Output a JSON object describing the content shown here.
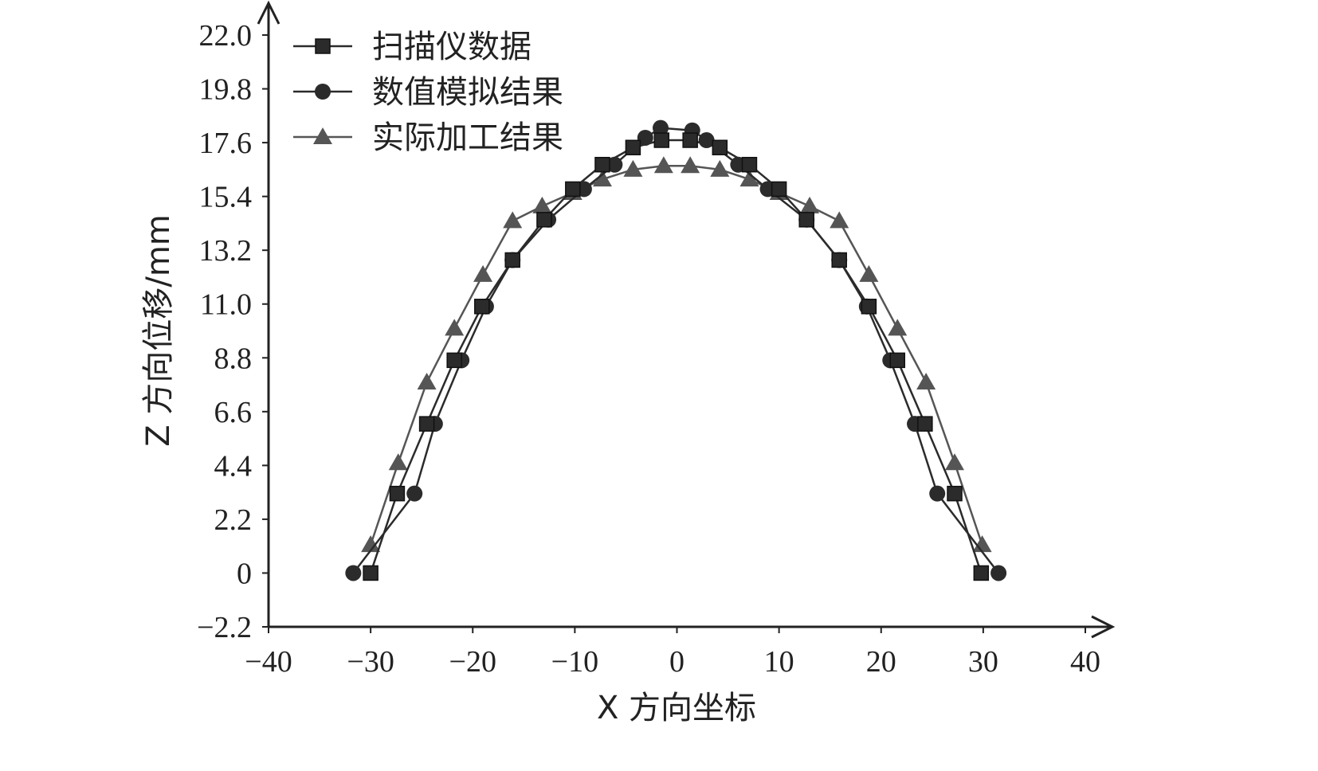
{
  "chart_data": {
    "type": "line",
    "title": "",
    "xlabel": "X 方向坐标",
    "ylabel": "Z 方向位移/mm",
    "xlim": [
      -40,
      40
    ],
    "ylim": [
      -2.2,
      22.0
    ],
    "xticks": [
      "−40",
      "−30",
      "−20",
      "−10",
      "0",
      "10",
      "20",
      "30",
      "40"
    ],
    "xtick_values": [
      -40,
      -30,
      -20,
      -10,
      0,
      10,
      20,
      30,
      40
    ],
    "yticks": [
      "−2.2",
      "0",
      "2.2",
      "4.4",
      "6.6",
      "8.8",
      "11.0",
      "13.2",
      "15.4",
      "17.6",
      "19.8",
      "22.0"
    ],
    "ytick_values": [
      -2.2,
      0,
      2.2,
      4.4,
      6.6,
      8.8,
      11.0,
      13.2,
      15.4,
      17.6,
      19.8,
      22.0
    ],
    "grid": false,
    "legend_position": "top-left",
    "series": [
      {
        "name": "扫描仪数据",
        "marker": "square",
        "color": "#2b2b2b",
        "x": [
          -30,
          -27.4,
          -24.5,
          -21.8,
          -19.1,
          -16.1,
          -13,
          -10.2,
          -7.3,
          -4.3,
          -1.5,
          1.3,
          4.2,
          7.1,
          10,
          12.7,
          15.9,
          18.8,
          21.6,
          24.3,
          27.2,
          29.8
        ],
        "y": [
          0,
          3.25,
          6.1,
          8.7,
          10.9,
          12.8,
          14.45,
          15.7,
          16.7,
          17.4,
          17.7,
          17.7,
          17.4,
          16.7,
          15.7,
          14.45,
          12.8,
          10.9,
          8.7,
          6.1,
          3.25,
          0
        ]
      },
      {
        "name": "数值模拟结果",
        "marker": "circle",
        "color": "#2b2b2b",
        "x": [
          -31.7,
          -25.7,
          -23.7,
          -21.1,
          -18.7,
          -16.1,
          -12.6,
          -9.1,
          -6.1,
          -3.1,
          -1.6,
          1.5,
          2.9,
          6.0,
          8.9,
          12.7,
          15.9,
          18.6,
          20.9,
          23.3,
          25.5,
          31.5
        ],
        "y": [
          0,
          3.25,
          6.1,
          8.7,
          10.9,
          12.8,
          14.45,
          15.7,
          16.7,
          17.8,
          18.2,
          18.1,
          17.7,
          16.7,
          15.7,
          14.45,
          12.8,
          10.9,
          8.7,
          6.1,
          3.25,
          0
        ]
      },
      {
        "name": "实际加工结果",
        "marker": "triangle",
        "color": "#555555",
        "x": [
          -30,
          -27.3,
          -24.5,
          -21.8,
          -19,
          -16.1,
          -13.2,
          -10.2,
          -7.3,
          -4.3,
          -1.3,
          1.3,
          4.2,
          7.1,
          10,
          13,
          15.9,
          18.8,
          21.6,
          24.4,
          27.2,
          29.9
        ],
        "y": [
          1.15,
          4.5,
          7.8,
          10.0,
          12.2,
          14.4,
          15.0,
          15.55,
          16.1,
          16.5,
          16.65,
          16.65,
          16.5,
          16.1,
          15.55,
          15.0,
          14.4,
          12.2,
          10.0,
          7.8,
          4.5,
          1.15
        ]
      }
    ]
  }
}
